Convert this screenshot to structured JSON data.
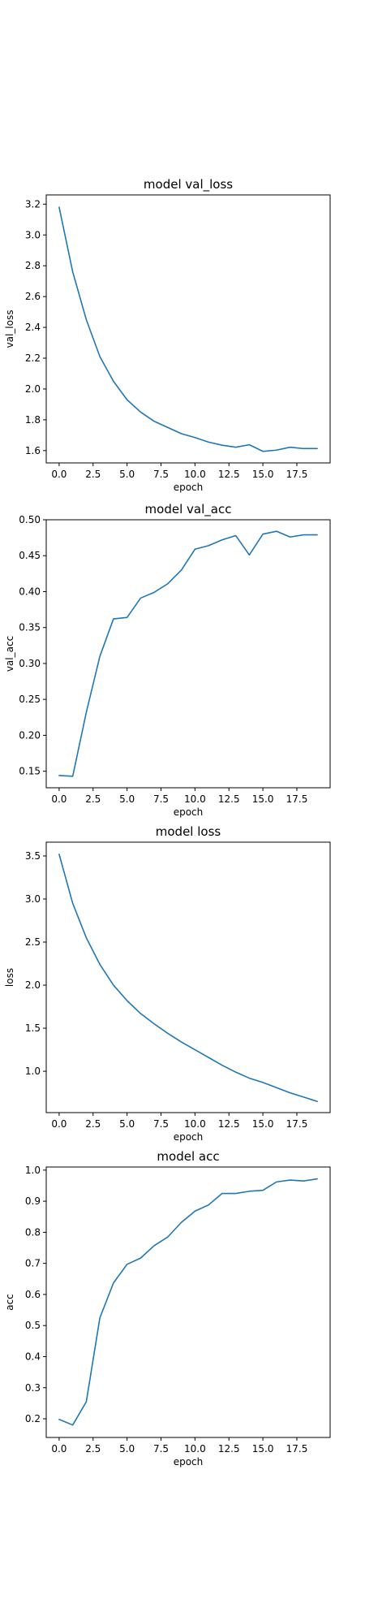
{
  "chart_data": [
    {
      "type": "line",
      "title": "model val_loss",
      "xlabel": "epoch",
      "ylabel": "val_loss",
      "xlim": [
        -0.95,
        19.95
      ],
      "ylim": [
        1.52,
        3.26
      ],
      "xticks": [
        0,
        2.5,
        5,
        7.5,
        10,
        12.5,
        15,
        17.5
      ],
      "xtick_labels": [
        "0.0",
        "2.5",
        "5.0",
        "7.5",
        "10.0",
        "12.5",
        "15.0",
        "17.5"
      ],
      "yticks": [
        1.6,
        1.8,
        2.0,
        2.2,
        2.4,
        2.6,
        2.8,
        3.0,
        3.2
      ],
      "ytick_labels": [
        "1.6",
        "1.8",
        "2.0",
        "2.2",
        "2.4",
        "2.6",
        "2.8",
        "3.0",
        "3.2"
      ],
      "grid": false,
      "series": [
        {
          "color": "#1f77b4",
          "x": [
            0,
            1,
            2,
            3,
            4,
            5,
            6,
            7,
            8,
            9,
            10,
            11,
            12,
            13,
            14,
            15,
            16,
            17,
            18,
            19
          ],
          "y": [
            3.18,
            2.76,
            2.45,
            2.21,
            2.05,
            1.93,
            1.85,
            1.79,
            1.75,
            1.71,
            1.685,
            1.655,
            1.635,
            1.622,
            1.638,
            1.595,
            1.603,
            1.622,
            1.613,
            1.613
          ]
        }
      ]
    },
    {
      "type": "line",
      "title": "model val_acc",
      "xlabel": "epoch",
      "ylabel": "val_acc",
      "xlim": [
        -0.95,
        19.95
      ],
      "ylim": [
        0.127,
        0.5
      ],
      "xticks": [
        0,
        2.5,
        5,
        7.5,
        10,
        12.5,
        15,
        17.5
      ],
      "xtick_labels": [
        "0.0",
        "2.5",
        "5.0",
        "7.5",
        "10.0",
        "12.5",
        "15.0",
        "17.5"
      ],
      "yticks": [
        0.15,
        0.2,
        0.25,
        0.3,
        0.35,
        0.4,
        0.45,
        0.5
      ],
      "ytick_labels": [
        "0.15",
        "0.20",
        "0.25",
        "0.30",
        "0.35",
        "0.40",
        "0.45",
        "0.50"
      ],
      "grid": false,
      "series": [
        {
          "color": "#1f77b4",
          "x": [
            0,
            1,
            2,
            3,
            4,
            5,
            6,
            7,
            8,
            9,
            10,
            11,
            12,
            13,
            14,
            15,
            16,
            17,
            18,
            19
          ],
          "y": [
            0.144,
            0.143,
            0.232,
            0.31,
            0.362,
            0.364,
            0.391,
            0.399,
            0.411,
            0.43,
            0.459,
            0.464,
            0.472,
            0.478,
            0.451,
            0.48,
            0.484,
            0.476,
            0.479,
            0.479
          ]
        }
      ]
    },
    {
      "type": "line",
      "title": "model loss",
      "xlabel": "epoch",
      "ylabel": "loss",
      "xlim": [
        -0.95,
        19.95
      ],
      "ylim": [
        0.52,
        3.66
      ],
      "xticks": [
        0,
        2.5,
        5,
        7.5,
        10,
        12.5,
        15,
        17.5
      ],
      "xtick_labels": [
        "0.0",
        "2.5",
        "5.0",
        "7.5",
        "10.0",
        "12.5",
        "15.0",
        "17.5"
      ],
      "yticks": [
        1.0,
        1.5,
        2.0,
        2.5,
        3.0,
        3.5
      ],
      "ytick_labels": [
        "1.0",
        "1.5",
        "2.0",
        "2.5",
        "3.0",
        "3.5"
      ],
      "grid": false,
      "series": [
        {
          "color": "#1f77b4",
          "x": [
            0,
            1,
            2,
            3,
            4,
            5,
            6,
            7,
            8,
            9,
            10,
            11,
            12,
            13,
            14,
            15,
            16,
            17,
            18,
            19
          ],
          "y": [
            3.52,
            2.95,
            2.55,
            2.24,
            2.0,
            1.82,
            1.67,
            1.55,
            1.44,
            1.34,
            1.25,
            1.16,
            1.07,
            0.99,
            0.92,
            0.87,
            0.81,
            0.75,
            0.7,
            0.65
          ]
        }
      ]
    },
    {
      "type": "line",
      "title": "model acc",
      "xlabel": "epoch",
      "ylabel": "acc",
      "xlim": [
        -0.95,
        19.95
      ],
      "ylim": [
        0.14,
        1.01
      ],
      "xticks": [
        0,
        2.5,
        5,
        7.5,
        10,
        12.5,
        15,
        17.5
      ],
      "xtick_labels": [
        "0.0",
        "2.5",
        "5.0",
        "7.5",
        "10.0",
        "12.5",
        "15.0",
        "17.5"
      ],
      "yticks": [
        0.2,
        0.3,
        0.4,
        0.5,
        0.6,
        0.7,
        0.8,
        0.9,
        1.0
      ],
      "ytick_labels": [
        "0.2",
        "0.3",
        "0.4",
        "0.5",
        "0.6",
        "0.7",
        "0.8",
        "0.9",
        "1.0"
      ],
      "grid": false,
      "series": [
        {
          "color": "#1f77b4",
          "x": [
            0,
            1,
            2,
            3,
            4,
            5,
            6,
            7,
            8,
            9,
            10,
            11,
            12,
            13,
            14,
            15,
            16,
            17,
            18,
            19
          ],
          "y": [
            0.198,
            0.18,
            0.255,
            0.525,
            0.637,
            0.697,
            0.717,
            0.757,
            0.785,
            0.832,
            0.868,
            0.888,
            0.925,
            0.925,
            0.932,
            0.935,
            0.962,
            0.968,
            0.965,
            0.972
          ]
        }
      ]
    }
  ]
}
